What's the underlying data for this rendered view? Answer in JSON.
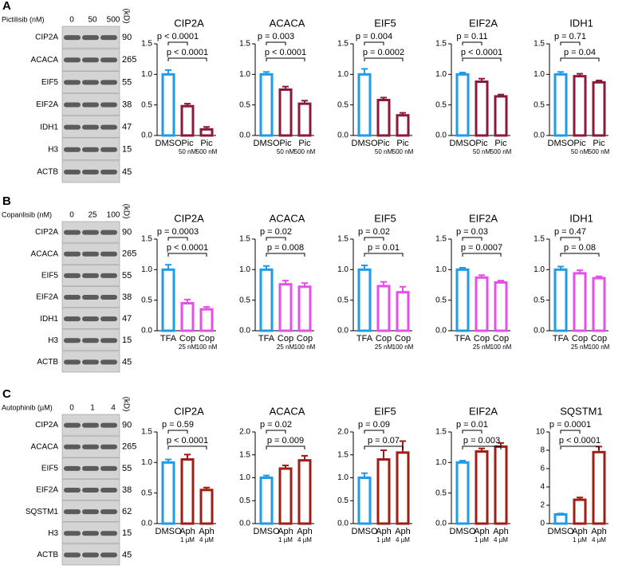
{
  "panels": [
    {
      "label": "A",
      "treatment": "Pictilisib (nM)",
      "lanes": [
        "0",
        "50",
        "500"
      ],
      "unit": "(kD)",
      "proteins": [
        {
          "name": "CIP2A",
          "kd": 90
        },
        {
          "name": "ACACA",
          "kd": 265
        },
        {
          "name": "EIF5",
          "kd": 55
        },
        {
          "name": "EIF2A",
          "kd": 38
        },
        {
          "name": "IDH1",
          "kd": 47
        },
        {
          "name": "H3",
          "kd": 15
        },
        {
          "name": "ACTB",
          "kd": 45
        }
      ]
    },
    {
      "label": "B",
      "treatment": "Copanlisib (nM)",
      "lanes": [
        "0",
        "25",
        "100"
      ],
      "unit": "(kD)",
      "proteins": [
        {
          "name": "CIP2A",
          "kd": 90
        },
        {
          "name": "ACACA",
          "kd": 265
        },
        {
          "name": "EIF5",
          "kd": 55
        },
        {
          "name": "EIF2A",
          "kd": 38
        },
        {
          "name": "IDH1",
          "kd": 47
        },
        {
          "name": "H3",
          "kd": 15
        },
        {
          "name": "ACTB",
          "kd": 45
        }
      ]
    },
    {
      "label": "C",
      "treatment": "Autophinib (µM)",
      "lanes": [
        "0",
        "1",
        "4"
      ],
      "unit": "(kD)",
      "proteins": [
        {
          "name": "CIP2A",
          "kd": 90
        },
        {
          "name": "ACACA",
          "kd": 265
        },
        {
          "name": "EIF5",
          "kd": 55
        },
        {
          "name": "EIF2A",
          "kd": 38
        },
        {
          "name": "SQSTM1",
          "kd": 62
        },
        {
          "name": "H3",
          "kd": 15
        },
        {
          "name": "ACTB",
          "kd": 45
        }
      ]
    }
  ],
  "chart_data": [
    {
      "type": "bar",
      "title": "CIP2A",
      "categories": [
        "DMSO",
        "Pic",
        "Pic"
      ],
      "sublabels": [
        null,
        "50 nM",
        "500 nM"
      ],
      "values": [
        1.0,
        0.48,
        0.1
      ],
      "errors": [
        0.07,
        0.04,
        0.04
      ],
      "colors": [
        "#1e9be9",
        "#8b1a3a",
        "#8b1a3a"
      ],
      "ylim": [
        0,
        1.5
      ],
      "yticks": [
        {
          "value": 0,
          "label": "0.0"
        },
        0.5,
        {
          "value": 1,
          "label": "1.0"
        },
        1.5
      ],
      "p_values": [
        "p < 0.0001",
        "p < 0.0001"
      ]
    },
    {
      "type": "bar",
      "title": "ACACA",
      "categories": [
        "DMSO",
        "Pic",
        "Pic"
      ],
      "sublabels": [
        null,
        "50 nM",
        "500 nM"
      ],
      "values": [
        1.0,
        0.75,
        0.52
      ],
      "errors": [
        0.04,
        0.05,
        0.05
      ],
      "colors": [
        "#1e9be9",
        "#8b1a3a",
        "#8b1a3a"
      ],
      "ylim": [
        0,
        1.5
      ],
      "yticks": [
        {
          "value": 0,
          "label": "0.0"
        },
        0.5,
        {
          "value": 1,
          "label": "1.0"
        },
        1.5
      ],
      "p_values": [
        "p = 0.003",
        "p < 0.0001"
      ]
    },
    {
      "type": "bar",
      "title": "EIF5",
      "categories": [
        "DMSO",
        "Pic",
        "Pic"
      ],
      "sublabels": [
        null,
        "50 nM",
        "500 nM"
      ],
      "values": [
        1.0,
        0.58,
        0.33
      ],
      "errors": [
        0.09,
        0.04,
        0.04
      ],
      "colors": [
        "#1e9be9",
        "#8b1a3a",
        "#8b1a3a"
      ],
      "ylim": [
        0,
        1.5
      ],
      "yticks": [
        {
          "value": 0,
          "label": "0.0"
        },
        0.5,
        {
          "value": 1,
          "label": "1.0"
        },
        1.5
      ],
      "p_values": [
        "p = 0.004",
        "p = 0.0002"
      ]
    },
    {
      "type": "bar",
      "title": "EIF2A",
      "categories": [
        "DMSO",
        "Pic",
        "Pic"
      ],
      "sublabels": [
        null,
        "50 nM",
        "500 nM"
      ],
      "values": [
        1.0,
        0.88,
        0.64
      ],
      "errors": [
        0.03,
        0.05,
        0.03
      ],
      "colors": [
        "#1e9be9",
        "#8b1a3a",
        "#8b1a3a"
      ],
      "ylim": [
        0,
        1.5
      ],
      "yticks": [
        {
          "value": 0,
          "label": "0.0"
        },
        0.5,
        {
          "value": 1,
          "label": "1.0"
        },
        1.5
      ],
      "p_values": [
        "p = 0.11",
        "p < 0.0001"
      ]
    },
    {
      "type": "bar",
      "title": "IDH1",
      "categories": [
        "DMSO",
        "Pic",
        "Pic"
      ],
      "sublabels": [
        null,
        "50 nM",
        "500 nM"
      ],
      "values": [
        1.0,
        0.97,
        0.87
      ],
      "errors": [
        0.04,
        0.04,
        0.03
      ],
      "colors": [
        "#1e9be9",
        "#8b1a3a",
        "#8b1a3a"
      ],
      "ylim": [
        0,
        1.5
      ],
      "yticks": [
        {
          "value": 0,
          "label": "0.0"
        },
        0.5,
        {
          "value": 1,
          "label": "1.0"
        },
        1.5
      ],
      "p_values": [
        "p = 0.71",
        "p = 0.04"
      ]
    },
    {
      "type": "bar",
      "title": "CIP2A",
      "categories": [
        "TFA",
        "Cop",
        "Cop"
      ],
      "sublabels": [
        null,
        "25 nM",
        "100 nM"
      ],
      "values": [
        1.0,
        0.45,
        0.35
      ],
      "errors": [
        0.08,
        0.06,
        0.04
      ],
      "colors": [
        "#1e9be9",
        "#e64fe8",
        "#e64fe8"
      ],
      "ylim": [
        0,
        1.5
      ],
      "yticks": [
        {
          "value": 0,
          "label": "0.0"
        },
        0.5,
        {
          "value": 1,
          "label": "1.0"
        },
        1.5
      ],
      "p_values": [
        "p = 0.0003",
        "p < 0.0001"
      ]
    },
    {
      "type": "bar",
      "title": "ACACA",
      "categories": [
        "TFA",
        "Cop",
        "Cop"
      ],
      "sublabels": [
        null,
        "25 nM",
        "100 nM"
      ],
      "values": [
        1.0,
        0.76,
        0.72
      ],
      "errors": [
        0.06,
        0.06,
        0.06
      ],
      "colors": [
        "#1e9be9",
        "#e64fe8",
        "#e64fe8"
      ],
      "ylim": [
        0,
        1.5
      ],
      "yticks": [
        {
          "value": 0,
          "label": "0.0"
        },
        0.5,
        {
          "value": 1,
          "label": "1.0"
        },
        1.5
      ],
      "p_values": [
        "p = 0.02",
        "p = 0.008"
      ]
    },
    {
      "type": "bar",
      "title": "EIF5",
      "categories": [
        "TFA",
        "Cop",
        "Cop"
      ],
      "sublabels": [
        null,
        "25 nM",
        "100 nM"
      ],
      "values": [
        1.0,
        0.73,
        0.63
      ],
      "errors": [
        0.07,
        0.07,
        0.09
      ],
      "colors": [
        "#1e9be9",
        "#e64fe8",
        "#e64fe8"
      ],
      "ylim": [
        0,
        1.5
      ],
      "yticks": [
        {
          "value": 0,
          "label": "0.0"
        },
        0.5,
        {
          "value": 1,
          "label": "1.0"
        },
        1.5
      ],
      "p_values": [
        "p = 0.02",
        "p = 0.01"
      ]
    },
    {
      "type": "bar",
      "title": "EIF2A",
      "categories": [
        "TFA",
        "Cop",
        "Cop"
      ],
      "sublabels": [
        null,
        "25 nM",
        "100 nM"
      ],
      "values": [
        1.0,
        0.87,
        0.79
      ],
      "errors": [
        0.03,
        0.04,
        0.03
      ],
      "colors": [
        "#1e9be9",
        "#e64fe8",
        "#e64fe8"
      ],
      "ylim": [
        0,
        1.5
      ],
      "yticks": [
        {
          "value": 0,
          "label": "0.0"
        },
        0.5,
        {
          "value": 1,
          "label": "1.0"
        },
        1.5
      ],
      "p_values": [
        "p = 0.03",
        "p = 0.0007"
      ]
    },
    {
      "type": "bar",
      "title": "IDH1",
      "categories": [
        "TFA",
        "Cop",
        "Cop"
      ],
      "sublabels": [
        null,
        "25 nM",
        "100 nM"
      ],
      "values": [
        1.0,
        0.94,
        0.86
      ],
      "errors": [
        0.05,
        0.05,
        0.03
      ],
      "colors": [
        "#1e9be9",
        "#e64fe8",
        "#e64fe8"
      ],
      "ylim": [
        0,
        1.5
      ],
      "yticks": [
        {
          "value": 0,
          "label": "0.0"
        },
        0.5,
        {
          "value": 1,
          "label": "1.0"
        },
        1.5
      ],
      "p_values": [
        "p = 0.47",
        "p = 0.08"
      ]
    },
    {
      "type": "bar",
      "title": "CIP2A",
      "categories": [
        "DMSO",
        "Aph",
        "Aph"
      ],
      "sublabels": [
        null,
        "1 µM",
        "4 µM"
      ],
      "values": [
        1.0,
        1.05,
        0.55
      ],
      "errors": [
        0.05,
        0.08,
        0.04
      ],
      "colors": [
        "#1e9be9",
        "#a01e14",
        "#a01e14"
      ],
      "ylim": [
        0,
        1.5
      ],
      "yticks": [
        {
          "value": 0,
          "label": "0.0"
        },
        0.5,
        {
          "value": 1,
          "label": "1.0"
        },
        1.5
      ],
      "p_values": [
        "p = 0.59",
        "p < 0.0001"
      ]
    },
    {
      "type": "bar",
      "title": "ACACA",
      "categories": [
        "DMSO",
        "Aph",
        "Aph"
      ],
      "sublabels": [
        null,
        "1 µM",
        "4 µM"
      ],
      "values": [
        1.0,
        1.2,
        1.38
      ],
      "errors": [
        0.05,
        0.07,
        0.1
      ],
      "colors": [
        "#1e9be9",
        "#a01e14",
        "#a01e14"
      ],
      "ylim": [
        0,
        2
      ],
      "yticks": [
        {
          "value": 0,
          "label": "0.0"
        },
        0.5,
        {
          "value": 1,
          "label": "1.0"
        },
        1.5,
        {
          "value": 2,
          "label": "2.0"
        }
      ],
      "p_values": [
        "p = 0.02",
        "p = 0.009"
      ]
    },
    {
      "type": "bar",
      "title": "EIF5",
      "categories": [
        "DMSO",
        "Aph",
        "Aph"
      ],
      "sublabels": [
        null,
        "1 µM",
        "4 µM"
      ],
      "values": [
        1.0,
        1.4,
        1.55
      ],
      "errors": [
        0.1,
        0.2,
        0.25
      ],
      "colors": [
        "#1e9be9",
        "#a01e14",
        "#a01e14"
      ],
      "ylim": [
        0,
        2
      ],
      "yticks": [
        {
          "value": 0,
          "label": "0.0"
        },
        0.5,
        {
          "value": 1,
          "label": "1.0"
        },
        1.5,
        {
          "value": 2,
          "label": "2.0"
        }
      ],
      "p_values": [
        "p = 0.09",
        "p = 0.07"
      ]
    },
    {
      "type": "bar",
      "title": "EIF2A",
      "categories": [
        "DMSO",
        "Aph",
        "Aph"
      ],
      "sublabels": [
        null,
        "1 µM",
        "4 µM"
      ],
      "values": [
        1.0,
        1.18,
        1.26
      ],
      "errors": [
        0.03,
        0.05,
        0.06
      ],
      "colors": [
        "#1e9be9",
        "#a01e14",
        "#a01e14"
      ],
      "ylim": [
        0,
        1.5
      ],
      "yticks": [
        {
          "value": 0,
          "label": "0.0"
        },
        0.5,
        {
          "value": 1,
          "label": "1.0"
        },
        1.5
      ],
      "p_values": [
        "p = 0.01",
        "p = 0.003"
      ]
    },
    {
      "type": "bar",
      "title": "SQSTM1",
      "categories": [
        "DMSO",
        "Aph",
        "Aph"
      ],
      "sublabels": [
        null,
        "1 µM",
        "4 µM"
      ],
      "values": [
        1.0,
        2.6,
        7.8
      ],
      "errors": [
        0.1,
        0.25,
        0.6
      ],
      "colors": [
        "#1e9be9",
        "#a01e14",
        "#a01e14"
      ],
      "ylim": [
        0,
        10
      ],
      "yticks": [
        0,
        2,
        4,
        6,
        8,
        10
      ],
      "p_values": [
        "p = 0.0001",
        "p < 0.0001"
      ]
    }
  ]
}
